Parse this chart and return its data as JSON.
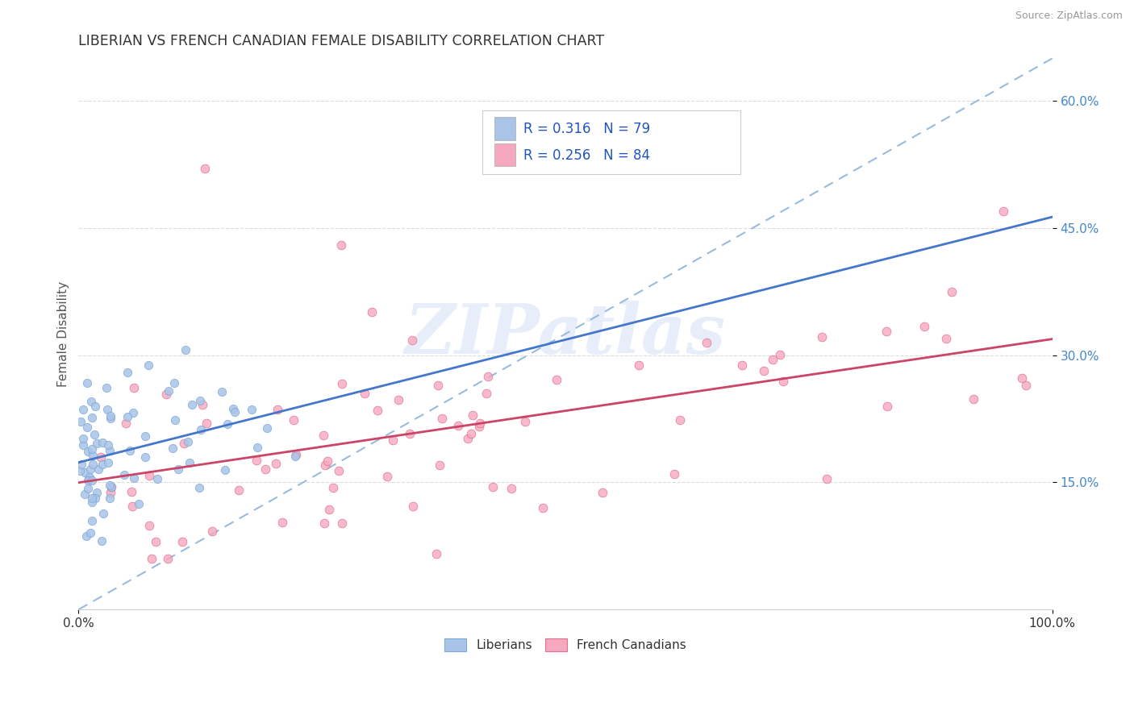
{
  "title": "LIBERIAN VS FRENCH CANADIAN FEMALE DISABILITY CORRELATION CHART",
  "source": "Source: ZipAtlas.com",
  "ylabel": "Female Disability",
  "xlim": [
    0.0,
    1.0
  ],
  "ylim": [
    0.0,
    0.65
  ],
  "yticks": [
    0.15,
    0.3,
    0.45,
    0.6
  ],
  "ytick_labels": [
    "15.0%",
    "30.0%",
    "45.0%",
    "60.0%"
  ],
  "xtick_labels": [
    "0.0%",
    "100.0%"
  ],
  "legend_r1": "R = 0.316",
  "legend_n1": "N = 79",
  "legend_r2": "R = 0.256",
  "legend_n2": "N = 84",
  "liberian_color": "#aac4e8",
  "liberian_edge": "#7ba8d8",
  "french_color": "#f5a8be",
  "french_edge": "#e0708c",
  "trend_color_liberian": "#4477cc",
  "trend_color_french": "#cc4466",
  "ref_line_color": "#99bbdd",
  "background_color": "#ffffff",
  "grid_color": "#dddddd",
  "watermark_color": "#ccddeeff",
  "title_color": "#333333",
  "ytick_color": "#4488cc",
  "xtick_color": "#333333",
  "legend_text_color": "#2255bb",
  "legend_n_color": "#2255bb"
}
